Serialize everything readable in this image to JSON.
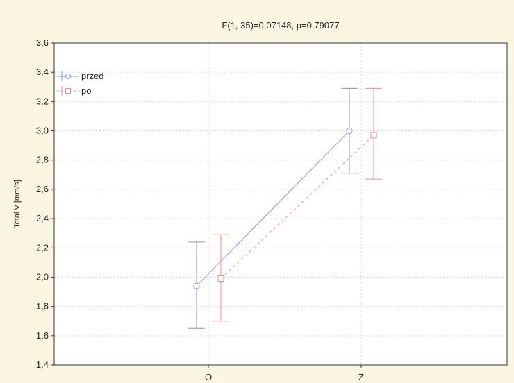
{
  "chart_data": {
    "type": "line",
    "title": "F(1, 35)=0,07148, p=0,79077",
    "xlabel": "",
    "ylabel": "Total V [mm/s]",
    "categories": [
      "O",
      "Z"
    ],
    "ylim": [
      1.4,
      3.6
    ],
    "yticks": [
      "1,4",
      "1,6",
      "1,8",
      "2,0",
      "2,2",
      "2,4",
      "2,6",
      "2,8",
      "3,0",
      "3,2",
      "3,4",
      "3,6"
    ],
    "grid": true,
    "legend_position": "top-left",
    "series": [
      {
        "name": "przed",
        "color": "#8c8ce6",
        "marker": "circle",
        "line": "solid",
        "values": [
          1.94,
          3.0
        ],
        "err_low": [
          1.65,
          2.71
        ],
        "err_high": [
          2.24,
          3.29
        ]
      },
      {
        "name": "po",
        "color": "#f08c8c",
        "marker": "square",
        "line": "dashed",
        "values": [
          1.99,
          2.97
        ],
        "err_low": [
          1.7,
          2.67
        ],
        "err_high": [
          2.29,
          3.29
        ]
      }
    ]
  }
}
